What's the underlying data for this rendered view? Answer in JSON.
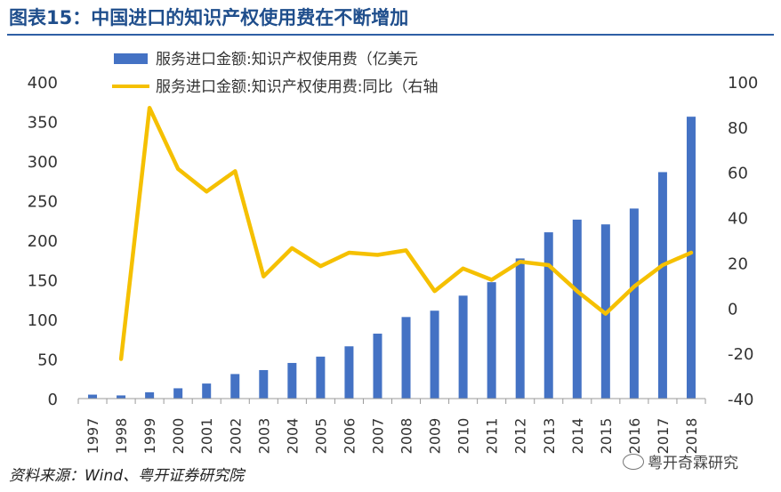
{
  "title": "图表15：中国进口的知识产权使用费在不断增加",
  "source": "资料来源：Wind、粤开证券研究院",
  "watermark": "粤开奇霖研究",
  "chart_data": {
    "type": "bar+line",
    "categories": [
      "1997",
      "1998",
      "1999",
      "2000",
      "2001",
      "2002",
      "2003",
      "2004",
      "2005",
      "2006",
      "2007",
      "2008",
      "2009",
      "2010",
      "2011",
      "2012",
      "2013",
      "2014",
      "2015",
      "2016",
      "2017",
      "2018"
    ],
    "series": [
      {
        "name": "服务进口金额:知识产权使用费（亿美元",
        "type": "bar",
        "axis": "left",
        "color": "#4472c4",
        "values": [
          5,
          4,
          8,
          13,
          19,
          31,
          36,
          45,
          53,
          66,
          82,
          103,
          111,
          130,
          147,
          177,
          210,
          226,
          220,
          240,
          286,
          356
        ]
      },
      {
        "name": "服务进口金额:知识产权使用费:同比（右轴",
        "type": "line",
        "axis": "right",
        "color": "#f5c000",
        "values": [
          null,
          -22.5,
          88.5,
          61.5,
          51.5,
          60.5,
          14,
          26.5,
          18.5,
          24.5,
          23.5,
          25.5,
          7.5,
          17.5,
          12.5,
          20.5,
          19,
          7.5,
          -2.5,
          9.5,
          19,
          24.5
        ]
      }
    ],
    "y_left": {
      "min": 0,
      "max": 400,
      "ticks": [
        "400",
        "350",
        "300",
        "250",
        "200",
        "150",
        "100",
        "50",
        "0"
      ]
    },
    "y_right": {
      "min": -40,
      "max": 100,
      "ticks": [
        "100",
        "80",
        "60",
        "40",
        "20",
        "0",
        "-20",
        "-40"
      ]
    },
    "grid": false,
    "legend_position": "top"
  }
}
